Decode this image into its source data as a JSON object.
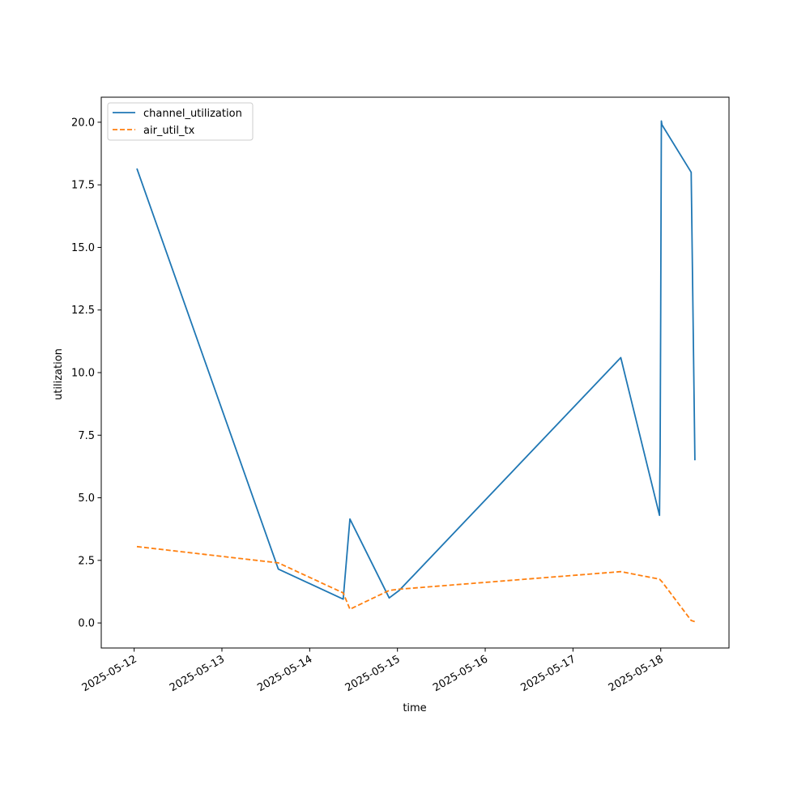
{
  "chart_data": {
    "type": "line",
    "title": "",
    "xlabel": "time",
    "ylabel": "utilization",
    "x_ticks": [
      "2025-05-12",
      "2025-05-13",
      "2025-05-14",
      "2025-05-15",
      "2025-05-16",
      "2025-05-17",
      "2025-05-18"
    ],
    "y_ticks": [
      "0.0",
      "2.5",
      "5.0",
      "7.5",
      "10.0",
      "12.5",
      "15.0",
      "17.5",
      "20.0"
    ],
    "xlim": [
      "2025-05-11T15:00",
      "2025-05-18T18:40"
    ],
    "ylim": [
      -1.0,
      21.0
    ],
    "legend_position": "upper-left",
    "grid": false,
    "series": [
      {
        "name": "channel_utilization",
        "color": "#1f77b4",
        "style": "solid",
        "x": [
          "2025-05-12T00:45",
          "2025-05-13T15:25",
          "2025-05-14T09:10",
          "2025-05-14T11:00",
          "2025-05-14T21:45",
          "2025-05-15T00:30",
          "2025-05-17T13:05",
          "2025-05-17T23:40",
          "2025-05-17T23:50",
          "2025-05-18T00:00",
          "2025-05-18T00:10",
          "2025-05-18T00:20",
          "2025-05-18T08:20",
          "2025-05-18T09:20"
        ],
        "y": [
          18.15,
          2.15,
          0.95,
          4.15,
          1.0,
          1.3,
          10.6,
          4.3,
          7.0,
          12.5,
          20.05,
          19.9,
          18.0,
          6.5
        ]
      },
      {
        "name": "air_util_tx",
        "color": "#ff7f0e",
        "style": "dashed",
        "x": [
          "2025-05-12T00:45",
          "2025-05-13T15:25",
          "2025-05-14T09:10",
          "2025-05-14T11:00",
          "2025-05-14T21:45",
          "2025-05-15T00:30",
          "2025-05-17T13:05",
          "2025-05-17T23:40",
          "2025-05-18T00:20",
          "2025-05-18T08:20",
          "2025-05-18T09:20"
        ],
        "y": [
          3.05,
          2.4,
          1.2,
          0.55,
          1.3,
          1.35,
          2.05,
          1.75,
          1.65,
          0.1,
          0.05
        ]
      }
    ]
  }
}
